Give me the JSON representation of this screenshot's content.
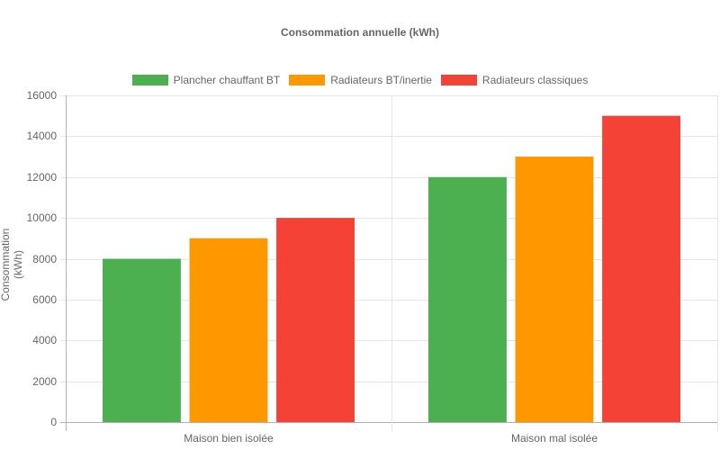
{
  "chart_data": {
    "type": "bar",
    "title": "Consommation annuelle (kWh)",
    "xlabel": "",
    "ylabel": "Consommation (kWh)",
    "categories": [
      "Maison bien isolée",
      "Maison mal isolée"
    ],
    "series": [
      {
        "name": "Plancher chauffant BT",
        "color": "#4caf50",
        "values": [
          8000,
          12000
        ]
      },
      {
        "name": "Radiateurs BT/inertie",
        "color": "#ff9800",
        "values": [
          9000,
          13000
        ]
      },
      {
        "name": "Radiateurs classiques",
        "color": "#f44336",
        "values": [
          10000,
          15000
        ]
      }
    ],
    "ylim": [
      0,
      16000
    ],
    "yticks": [
      "0",
      "2000",
      "4000",
      "6000",
      "8000",
      "10000",
      "12000",
      "14000",
      "16000"
    ],
    "grid": true,
    "legend_position": "top"
  }
}
